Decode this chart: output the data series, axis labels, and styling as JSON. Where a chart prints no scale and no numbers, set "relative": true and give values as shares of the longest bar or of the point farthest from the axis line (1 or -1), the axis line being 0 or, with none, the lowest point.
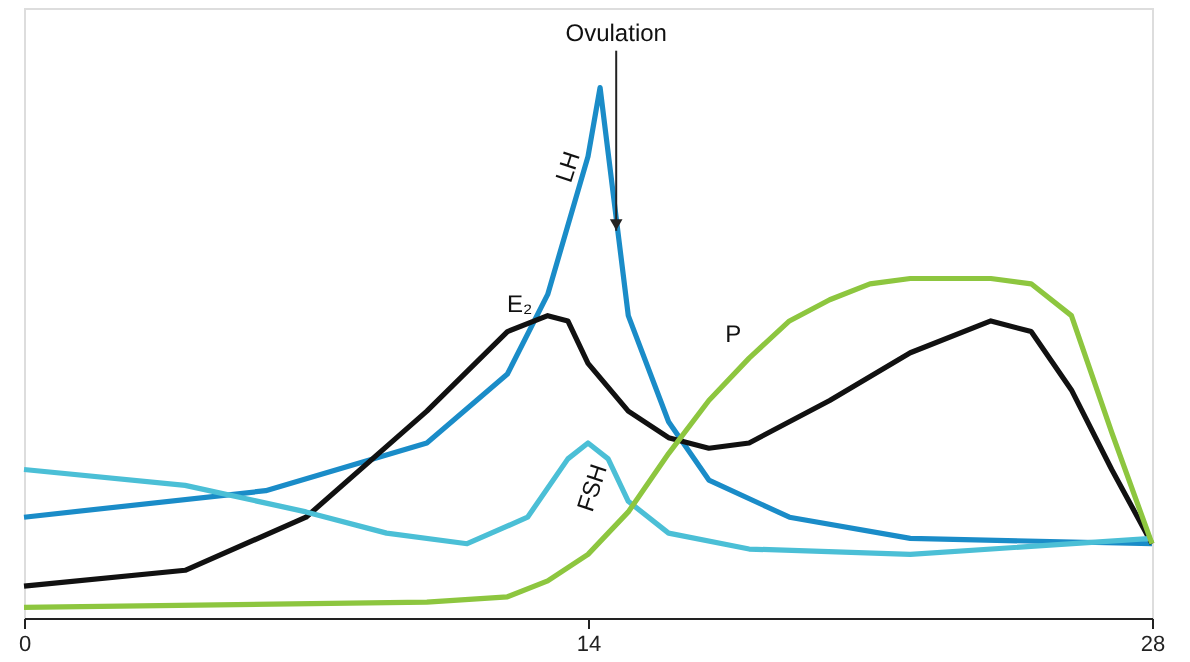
{
  "chart_data": {
    "type": "line",
    "relative": true,
    "xlim": [
      0,
      28
    ],
    "xticks": [
      0,
      14,
      28
    ],
    "grid": false,
    "legend": false,
    "marker": "none",
    "line_style": "solid",
    "series": [
      {
        "name": "LH",
        "color": "#1a8cc8",
        "x": [
          0,
          6,
          10,
          12,
          13,
          14,
          14.3,
          15,
          16,
          17,
          19,
          22,
          28
        ],
        "values": [
          0.19,
          0.24,
          0.33,
          0.46,
          0.61,
          0.87,
          1.0,
          0.57,
          0.37,
          0.26,
          0.19,
          0.15,
          0.14
        ]
      },
      {
        "name": "E₂",
        "color": "#111111",
        "x": [
          0,
          4,
          7,
          10,
          12,
          13,
          13.5,
          14,
          15,
          16,
          17,
          18,
          20,
          22,
          24,
          25,
          26,
          27,
          28
        ],
        "values": [
          0.06,
          0.09,
          0.19,
          0.39,
          0.54,
          0.57,
          0.56,
          0.48,
          0.39,
          0.34,
          0.32,
          0.33,
          0.41,
          0.5,
          0.56,
          0.54,
          0.43,
          0.28,
          0.14
        ]
      },
      {
        "name": "FSH",
        "color": "#4bbfd6",
        "x": [
          0,
          4,
          7,
          9,
          11,
          12.5,
          13.5,
          14,
          14.5,
          15,
          16,
          18,
          22,
          28
        ],
        "values": [
          0.28,
          0.25,
          0.2,
          0.16,
          0.14,
          0.19,
          0.3,
          0.33,
          0.3,
          0.22,
          0.16,
          0.13,
          0.12,
          0.15
        ]
      },
      {
        "name": "P",
        "color": "#8dc63f",
        "x": [
          0,
          10,
          12,
          13,
          14,
          15,
          16,
          17,
          18,
          19,
          20,
          21,
          22,
          24,
          25,
          26,
          27,
          28
        ],
        "values": [
          0.02,
          0.03,
          0.04,
          0.07,
          0.12,
          0.2,
          0.31,
          0.41,
          0.49,
          0.56,
          0.6,
          0.63,
          0.64,
          0.64,
          0.63,
          0.57,
          0.35,
          0.14
        ]
      }
    ],
    "annotations": [
      {
        "text": "Ovulation",
        "x": 14.7,
        "y": 0.73
      }
    ]
  }
}
